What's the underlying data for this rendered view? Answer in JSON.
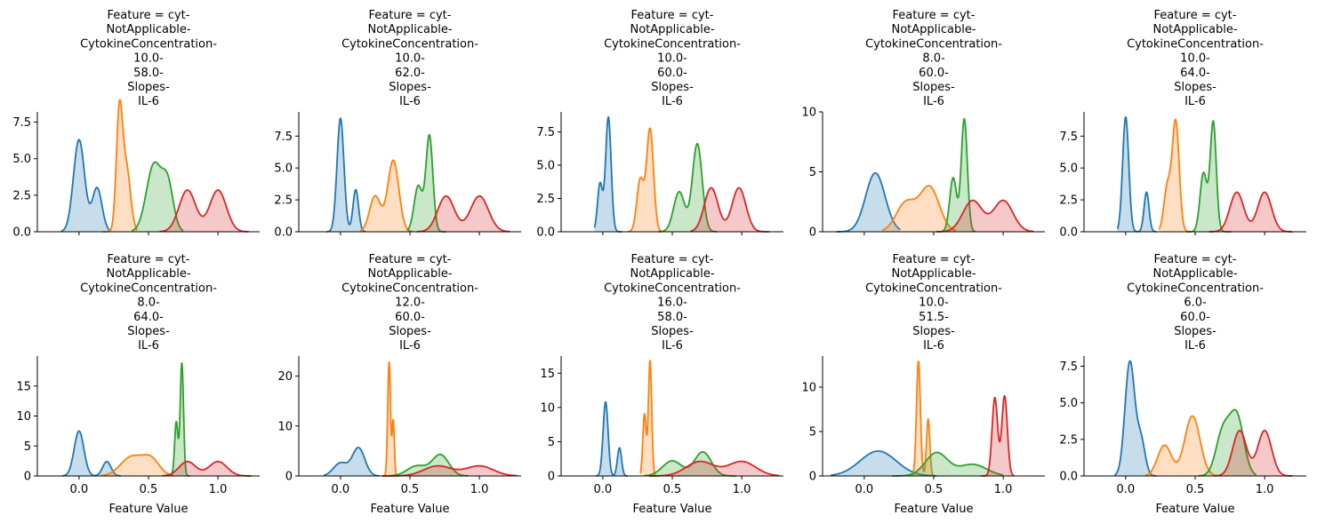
{
  "chart_data": {
    "type": "area",
    "description_style": "kde-facet-grid",
    "grid": false,
    "legend": "none",
    "series_colors": [
      "#1f77b4",
      "#ff7f0e",
      "#2ca02c",
      "#d62728"
    ],
    "xlabel": "Feature Value",
    "xlim": [
      -0.3,
      1.3
    ],
    "xticks": [
      0.0,
      0.5,
      1.0
    ],
    "xtick_labels": [
      "0.0",
      "0.5",
      "1.0"
    ],
    "facets": [
      {
        "title_lines": [
          "Feature = cyt-",
          "NotApplicable-",
          "CytokineConcentration-",
          "10.0-",
          "58.0-",
          "Slopes-",
          "IL-6"
        ],
        "ylim": [
          0,
          8.2
        ],
        "yticks": [
          0,
          2.5,
          5.0,
          7.5
        ],
        "ytick_labels": [
          "0.0",
          "2.5",
          "5.0",
          "7.5"
        ],
        "series": [
          {
            "color": "#1f77b4",
            "range": [
              -0.13,
              0.22
            ],
            "peaks": [
              [
                0.0,
                6.3,
                0.04
              ],
              [
                0.13,
                3.0,
                0.035
              ]
            ]
          },
          {
            "color": "#ff7f0e",
            "range": [
              0.17,
              0.42
            ],
            "peaks": [
              [
                0.29,
                7.8,
                0.022
              ],
              [
                0.34,
                4.4,
                0.03
              ]
            ]
          },
          {
            "color": "#2ca02c",
            "range": [
              0.38,
              0.75
            ],
            "peaks": [
              [
                0.54,
                4.6,
                0.055
              ],
              [
                0.64,
                3.0,
                0.04
              ]
            ]
          },
          {
            "color": "#d62728",
            "range": [
              0.58,
              1.22
            ],
            "peaks": [
              [
                0.78,
                2.85,
                0.06
              ],
              [
                1.0,
                2.85,
                0.06
              ]
            ]
          }
        ]
      },
      {
        "title_lines": [
          "Feature = cyt-",
          "NotApplicable-",
          "CytokineConcentration-",
          "10.0-",
          "62.0-",
          "Slopes-",
          "IL-6"
        ],
        "ylim": [
          0,
          9.4
        ],
        "yticks": [
          0,
          2.5,
          5.0,
          7.5
        ],
        "ytick_labels": [
          "0.0",
          "2.5",
          "5.0",
          "7.5"
        ],
        "series": [
          {
            "color": "#1f77b4",
            "range": [
              -0.1,
              0.18
            ],
            "peaks": [
              [
                0.0,
                8.9,
                0.025
              ],
              [
                0.11,
                3.3,
                0.02
              ]
            ]
          },
          {
            "color": "#ff7f0e",
            "range": [
              0.14,
              0.52
            ],
            "peaks": [
              [
                0.25,
                2.8,
                0.04
              ],
              [
                0.38,
                5.6,
                0.04
              ]
            ]
          },
          {
            "color": "#2ca02c",
            "range": [
              0.48,
              0.76
            ],
            "peaks": [
              [
                0.56,
                3.6,
                0.03
              ],
              [
                0.64,
                7.5,
                0.025
              ]
            ]
          },
          {
            "color": "#d62728",
            "range": [
              0.55,
              1.22
            ],
            "peaks": [
              [
                0.76,
                2.8,
                0.06
              ],
              [
                1.0,
                2.8,
                0.065
              ]
            ]
          }
        ]
      },
      {
        "title_lines": [
          "Feature = cyt-",
          "NotApplicable-",
          "CytokineConcentration-",
          "10.0-",
          "60.0-",
          "Slopes-",
          "IL-6"
        ],
        "ylim": [
          0,
          9.0
        ],
        "yticks": [
          0,
          2.5,
          5.0,
          7.5
        ],
        "ytick_labels": [
          "0.0",
          "2.5",
          "5.0",
          "7.5"
        ],
        "series": [
          {
            "color": "#1f77b4",
            "range": [
              -0.06,
              0.14
            ],
            "peaks": [
              [
                -0.02,
                3.6,
                0.018
              ],
              [
                0.04,
                8.6,
                0.02
              ]
            ]
          },
          {
            "color": "#ff7f0e",
            "range": [
              0.18,
              0.42
            ],
            "peaks": [
              [
                0.27,
                3.9,
                0.025
              ],
              [
                0.34,
                7.7,
                0.025
              ]
            ]
          },
          {
            "color": "#2ca02c",
            "range": [
              0.4,
              0.82
            ],
            "peaks": [
              [
                0.55,
                3.0,
                0.04
              ],
              [
                0.68,
                6.6,
                0.035
              ]
            ]
          },
          {
            "color": "#d62728",
            "range": [
              0.63,
              1.2
            ],
            "peaks": [
              [
                0.78,
                3.3,
                0.05
              ],
              [
                0.98,
                3.3,
                0.05
              ]
            ]
          }
        ]
      },
      {
        "title_lines": [
          "Feature = cyt-",
          "NotApplicable-",
          "CytokineConcentration-",
          "8.0-",
          "60.0-",
          "Slopes-",
          "IL-6"
        ],
        "ylim": [
          0,
          10.0
        ],
        "yticks": [
          0,
          5,
          10
        ],
        "ytick_labels": [
          "0",
          "5",
          "10"
        ],
        "series": [
          {
            "color": "#1f77b4",
            "range": [
              -0.2,
              0.26
            ],
            "peaks": [
              [
                0.08,
                4.9,
                0.07
              ]
            ]
          },
          {
            "color": "#ff7f0e",
            "range": [
              0.13,
              0.66
            ],
            "peaks": [
              [
                0.3,
                2.4,
                0.07
              ],
              [
                0.47,
                3.7,
                0.07
              ]
            ]
          },
          {
            "color": "#2ca02c",
            "range": [
              0.54,
              0.8
            ],
            "peaks": [
              [
                0.64,
                4.5,
                0.025
              ],
              [
                0.72,
                9.4,
                0.022
              ]
            ]
          },
          {
            "color": "#d62728",
            "range": [
              0.52,
              1.22
            ],
            "peaks": [
              [
                0.78,
                2.6,
                0.07
              ],
              [
                1.0,
                2.6,
                0.07
              ]
            ]
          }
        ]
      },
      {
        "title_lines": [
          "Feature = cyt-",
          "NotApplicable-",
          "CytokineConcentration-",
          "10.0-",
          "64.0-",
          "Slopes-",
          "IL-6"
        ],
        "ylim": [
          0,
          9.4
        ],
        "yticks": [
          0,
          2.5,
          5.0,
          7.5
        ],
        "ytick_labels": [
          "0.0",
          "2.5",
          "5.0",
          "7.5"
        ],
        "series": [
          {
            "color": "#1f77b4",
            "range": [
              -0.06,
              0.22
            ],
            "peaks": [
              [
                0.0,
                9.0,
                0.022
              ],
              [
                0.15,
                3.1,
                0.018
              ]
            ]
          },
          {
            "color": "#ff7f0e",
            "range": [
              0.24,
              0.46
            ],
            "peaks": [
              [
                0.3,
                3.5,
                0.025
              ],
              [
                0.36,
                8.6,
                0.025
              ]
            ]
          },
          {
            "color": "#2ca02c",
            "range": [
              0.44,
              0.76
            ],
            "peaks": [
              [
                0.56,
                4.6,
                0.025
              ],
              [
                0.63,
                8.6,
                0.022
              ]
            ]
          },
          {
            "color": "#d62728",
            "range": [
              0.6,
              1.2
            ],
            "peaks": [
              [
                0.8,
                3.1,
                0.05
              ],
              [
                1.0,
                3.1,
                0.05
              ]
            ]
          }
        ]
      },
      {
        "title_lines": [
          "Feature = cyt-",
          "NotApplicable-",
          "CytokineConcentration-",
          "8.0-",
          "64.0-",
          "Slopes-",
          "IL-6"
        ],
        "ylim": [
          0,
          20.0
        ],
        "yticks": [
          0,
          5,
          10,
          15
        ],
        "ytick_labels": [
          "0",
          "5",
          "10",
          "15"
        ],
        "series": [
          {
            "color": "#1f77b4",
            "range": [
              -0.12,
              0.3
            ],
            "peaks": [
              [
                0.0,
                7.5,
                0.035
              ],
              [
                0.2,
                2.4,
                0.03
              ]
            ]
          },
          {
            "color": "#ff7f0e",
            "range": [
              0.16,
              0.68
            ],
            "peaks": [
              [
                0.38,
                3.2,
                0.08
              ],
              [
                0.52,
                2.6,
                0.06
              ]
            ]
          },
          {
            "color": "#2ca02c",
            "range": [
              0.66,
              0.8
            ],
            "peaks": [
              [
                0.7,
                9.0,
                0.012
              ],
              [
                0.74,
                18.8,
                0.012
              ]
            ]
          },
          {
            "color": "#d62728",
            "range": [
              0.6,
              1.24
            ],
            "peaks": [
              [
                0.78,
                2.4,
                0.06
              ],
              [
                1.0,
                2.4,
                0.065
              ]
            ]
          }
        ]
      },
      {
        "title_lines": [
          "Feature = cyt-",
          "NotApplicable-",
          "CytokineConcentration-",
          "12.0-",
          "60.0-",
          "Slopes-",
          "IL-6"
        ],
        "ylim": [
          0,
          24.0
        ],
        "yticks": [
          0,
          10,
          20
        ],
        "ytick_labels": [
          "0",
          "10",
          "20"
        ],
        "series": [
          {
            "color": "#1f77b4",
            "range": [
              -0.12,
              0.28
            ],
            "peaks": [
              [
                0.0,
                2.6,
                0.05
              ],
              [
                0.13,
                5.6,
                0.045
              ]
            ]
          },
          {
            "color": "#ff7f0e",
            "range": [
              0.3,
              0.42
            ],
            "peaks": [
              [
                0.35,
                22.8,
                0.01
              ],
              [
                0.38,
                11.0,
                0.008
              ]
            ]
          },
          {
            "color": "#2ca02c",
            "range": [
              0.35,
              0.92
            ],
            "peaks": [
              [
                0.55,
                2.0,
                0.07
              ],
              [
                0.72,
                4.2,
                0.06
              ]
            ]
          },
          {
            "color": "#d62728",
            "range": [
              0.3,
              1.27
            ],
            "peaks": [
              [
                0.7,
                2.0,
                0.1
              ],
              [
                1.0,
                2.0,
                0.1
              ]
            ]
          }
        ]
      },
      {
        "title_lines": [
          "Feature = cyt-",
          "NotApplicable-",
          "CytokineConcentration-",
          "16.0-",
          "58.0-",
          "Slopes-",
          "IL-6"
        ],
        "ylim": [
          0,
          17.5
        ],
        "yticks": [
          0,
          5,
          10,
          15
        ],
        "ytick_labels": [
          "0",
          "5",
          "10",
          "15"
        ],
        "series": [
          {
            "color": "#1f77b4",
            "range": [
              -0.05,
              0.18
            ],
            "peaks": [
              [
                0.02,
                10.8,
                0.018
              ],
              [
                0.12,
                4.1,
                0.015
              ]
            ]
          },
          {
            "color": "#ff7f0e",
            "range": [
              0.27,
              0.4
            ],
            "peaks": [
              [
                0.3,
                9.0,
                0.012
              ],
              [
                0.34,
                16.8,
                0.012
              ]
            ]
          },
          {
            "color": "#2ca02c",
            "range": [
              0.3,
              0.96
            ],
            "peaks": [
              [
                0.5,
                2.2,
                0.07
              ],
              [
                0.72,
                3.5,
                0.06
              ]
            ]
          },
          {
            "color": "#d62728",
            "range": [
              0.33,
              1.27
            ],
            "peaks": [
              [
                0.7,
                2.1,
                0.1
              ],
              [
                1.0,
                2.1,
                0.1
              ]
            ]
          }
        ]
      },
      {
        "title_lines": [
          "Feature = cyt-",
          "NotApplicable-",
          "CytokineConcentration-",
          "10.0-",
          "51.5-",
          "Slopes-",
          "IL-6"
        ],
        "ylim": [
          0,
          13.5
        ],
        "yticks": [
          0,
          5,
          10
        ],
        "ytick_labels": [
          "0",
          "5",
          "10"
        ],
        "series": [
          {
            "color": "#1f77b4",
            "range": [
              -0.24,
              0.52
            ],
            "peaks": [
              [
                0.1,
                2.8,
                0.13
              ]
            ]
          },
          {
            "color": "#ff7f0e",
            "range": [
              0.34,
              0.5
            ],
            "peaks": [
              [
                0.39,
                12.9,
                0.014
              ],
              [
                0.46,
                6.4,
                0.012
              ]
            ]
          },
          {
            "color": "#2ca02c",
            "range": [
              0.2,
              1.0
            ],
            "peaks": [
              [
                0.52,
                2.6,
                0.08
              ],
              [
                0.78,
                1.3,
                0.1
              ]
            ]
          },
          {
            "color": "#d62728",
            "range": [
              0.84,
              1.08
            ],
            "peaks": [
              [
                0.94,
                8.8,
                0.02
              ],
              [
                1.01,
                9.0,
                0.02
              ]
            ]
          }
        ]
      },
      {
        "title_lines": [
          "Feature = cyt-",
          "NotApplicable-",
          "CytokineConcentration-",
          "6.0-",
          "60.0-",
          "Slopes-",
          "IL-6"
        ],
        "ylim": [
          0,
          8.2
        ],
        "yticks": [
          0,
          2.5,
          5.0,
          7.5
        ],
        "ytick_labels": [
          "0.0",
          "2.5",
          "5.0",
          "7.5"
        ],
        "series": [
          {
            "color": "#1f77b4",
            "range": [
              -0.08,
              0.22
            ],
            "peaks": [
              [
                0.03,
                7.8,
                0.035
              ],
              [
                0.11,
                2.4,
                0.03
              ]
            ]
          },
          {
            "color": "#ff7f0e",
            "range": [
              0.14,
              0.66
            ],
            "peaks": [
              [
                0.28,
                2.1,
                0.05
              ],
              [
                0.48,
                4.1,
                0.055
              ]
            ]
          },
          {
            "color": "#2ca02c",
            "range": [
              0.52,
              0.94
            ],
            "peaks": [
              [
                0.7,
                3.0,
                0.05
              ],
              [
                0.8,
                4.0,
                0.05
              ]
            ]
          },
          {
            "color": "#d62728",
            "range": [
              0.64,
              1.2
            ],
            "peaks": [
              [
                0.82,
                3.1,
                0.05
              ],
              [
                1.0,
                3.1,
                0.05
              ]
            ]
          }
        ]
      }
    ]
  }
}
